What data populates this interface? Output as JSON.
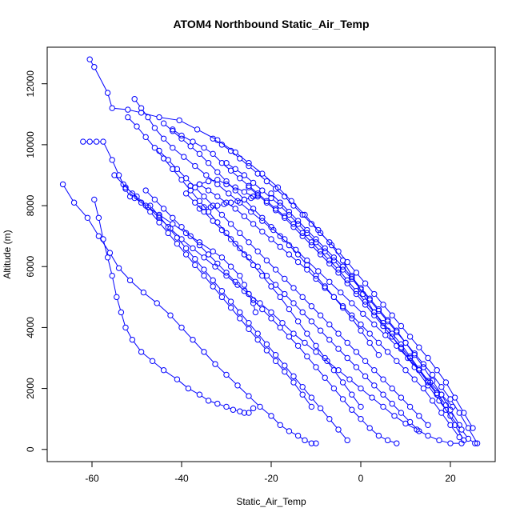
{
  "chart_data": {
    "type": "scatter",
    "title": "ATOM4 Northbound Static_Air_Temp",
    "xlabel": "Static_Air_Temp",
    "ylabel": "Altitude (m)",
    "xlim": [
      -70,
      30
    ],
    "ylim": [
      -400,
      13200
    ],
    "xticks": [
      -60,
      -40,
      -20,
      0,
      20
    ],
    "yticks": [
      0,
      2000,
      4000,
      6000,
      8000,
      10000,
      12000
    ],
    "xtick_labels": [
      "-60",
      "-40",
      "-20",
      "0",
      "20"
    ],
    "ytick_labels": [
      "0",
      "2000",
      "4000",
      "6000",
      "8000",
      "10000",
      "12000"
    ],
    "grid": false,
    "legend": "none",
    "series_color": "#0000ff",
    "marker": "open-circle",
    "connected": true,
    "series": [
      {
        "x": [
          -60.5,
          -59.5,
          -56.5,
          -55.5,
          -52.0,
          -49.0,
          -45.0,
          -40.5,
          -36.5,
          -32.0,
          -28.0,
          -25.0,
          -22.0,
          -18.5,
          -15.5,
          -12.5,
          -9.5,
          -6.5,
          -4.0,
          -2.0,
          0.5,
          3.0,
          6.0,
          9.0,
          12.0,
          15.0,
          17.5,
          20.0,
          22.5,
          24.0,
          25.5
        ],
        "y": [
          12800,
          12550,
          11700,
          11200,
          11150,
          11050,
          10900,
          10800,
          10500,
          10150,
          9750,
          9400,
          9050,
          8600,
          8150,
          7700,
          7200,
          6700,
          6200,
          5700,
          5100,
          4500,
          3900,
          3300,
          2700,
          2100,
          1600,
          1100,
          650,
          350,
          200
        ]
      },
      {
        "x": [
          -66.5,
          -64.0,
          -61.0,
          -58.5,
          -56.0,
          -54.0,
          -51.5,
          -48.5,
          -45.5,
          -42.5,
          -40.0,
          -37.5,
          -35.0,
          -32.5,
          -30.0,
          -27.5,
          -25.0,
          -22.5,
          -20.0,
          -18.0,
          -16.0,
          -14.0,
          -12.5,
          -11.0,
          -10.0
        ],
        "y": [
          8700,
          8100,
          7600,
          7000,
          6450,
          5950,
          5550,
          5150,
          4800,
          4400,
          4000,
          3600,
          3200,
          2800,
          2450,
          2100,
          1750,
          1400,
          1100,
          800,
          600,
          450,
          300,
          200,
          200
        ]
      },
      {
        "x": [
          -62.0,
          -60.5,
          -59.0,
          -57.5,
          -55.5,
          -54.0,
          -52.5,
          -51.5,
          -50.5,
          -48.0,
          -45.0,
          -42.0,
          -39.0,
          -36.0,
          -33.0,
          -31.0,
          -29.0,
          -27.0,
          -26.0,
          -25.0,
          -24.0,
          -23.5
        ],
        "y": [
          10100,
          10100,
          10100,
          10100,
          9500,
          9000,
          8550,
          8300,
          8250,
          8000,
          7700,
          7400,
          7100,
          6800,
          6500,
          6300,
          6000,
          5700,
          5400,
          5100,
          4800,
          4500
        ]
      },
      {
        "x": [
          -59.5,
          -58.5,
          -57.5,
          -56.5,
          -55.5,
          -54.5,
          -53.5,
          -52.5,
          -51.0,
          -49.0,
          -46.5,
          -44.0,
          -41.0,
          -38.5,
          -36.0,
          -34.0,
          -32.0,
          -30.0,
          -28.5,
          -27.0,
          -26.0,
          -25.0,
          -24.0
        ],
        "y": [
          8200,
          7600,
          6900,
          6300,
          5700,
          5000,
          4500,
          4000,
          3600,
          3200,
          2900,
          2600,
          2300,
          2000,
          1800,
          1600,
          1500,
          1400,
          1300,
          1250,
          1200,
          1200,
          1350
        ]
      },
      {
        "x": [
          -52.5,
          -50.0,
          -47.5,
          -45.0,
          -42.5,
          -40.0,
          -37.5,
          -35.0,
          -32.5,
          -30.0,
          -27.5,
          -25.0,
          -22.5,
          -20.0,
          -17.5,
          -15.0,
          -12.5,
          -10.0,
          -7.5,
          -5.0,
          -2.5,
          0.0,
          2.5,
          5.0,
          7.5,
          10.0,
          12.5,
          15.0,
          17.5,
          20.0,
          22.5
        ],
        "y": [
          8600,
          8300,
          7950,
          7600,
          7250,
          6900,
          6600,
          6300,
          6000,
          5700,
          5400,
          5100,
          4800,
          4500,
          4150,
          3800,
          3500,
          3200,
          2900,
          2600,
          2300,
          2000,
          1700,
          1400,
          1100,
          850,
          650,
          450,
          300,
          200,
          200
        ]
      },
      {
        "x": [
          -50.5,
          -49.0,
          -47.5,
          -46.0,
          -44.0,
          -42.0,
          -39.5,
          -37.0,
          -34.5,
          -32.0,
          -29.5,
          -27.0,
          -24.5,
          -22.0,
          -19.5,
          -17.0,
          -14.5,
          -12.0,
          -9.5,
          -7.0,
          -4.5,
          -2.0,
          0.5,
          3.0,
          5.5,
          8.0,
          10.5,
          13.0,
          15.5,
          18.0,
          20.5
        ],
        "y": [
          11500,
          11200,
          10900,
          10550,
          10200,
          9900,
          9600,
          9300,
          9000,
          8700,
          8400,
          8100,
          7800,
          7500,
          7200,
          6900,
          6550,
          6200,
          5850,
          5500,
          5150,
          4800,
          4450,
          4100,
          3750,
          3400,
          3000,
          2600,
          2200,
          1800,
          1400
        ]
      },
      {
        "x": [
          -42.0,
          -40.0,
          -37.5,
          -35.0,
          -33.0,
          -31.0,
          -29.0,
          -27.0,
          -25.0,
          -23.0,
          -21.0,
          -19.0,
          -17.0,
          -15.0,
          -13.0,
          -11.0,
          -9.0,
          -7.0,
          -5.0,
          -3.0,
          -1.0,
          1.0,
          3.0,
          5.0,
          7.0,
          9.0,
          11.0,
          13.0,
          15.0,
          17.0,
          19.0
        ],
        "y": [
          10500,
          10300,
          10100,
          9900,
          9700,
          9400,
          9150,
          8900,
          8650,
          8400,
          8150,
          7900,
          7650,
          7400,
          7100,
          6800,
          6500,
          6200,
          5900,
          5550,
          5200,
          4850,
          4500,
          4150,
          3800,
          3450,
          3050,
          2650,
          2250,
          1850,
          1450
        ]
      },
      {
        "x": [
          -48.0,
          -46.0,
          -44.0,
          -42.0,
          -40.0,
          -38.0,
          -36.0,
          -34.0,
          -32.0,
          -30.0,
          -28.0,
          -26.0,
          -24.0,
          -22.0,
          -20.0,
          -18.0,
          -16.0,
          -14.0,
          -12.0,
          -10.0,
          -8.0,
          -6.0,
          -4.0,
          -2.0,
          0.0,
          2.0,
          4.0,
          6.0,
          8.0
        ],
        "y": [
          8500,
          8200,
          7900,
          7600,
          7300,
          7000,
          6700,
          6400,
          6100,
          5800,
          5500,
          5200,
          4900,
          4600,
          4300,
          4000,
          3700,
          3400,
          3050,
          2700,
          2350,
          2000,
          1650,
          1300,
          1000,
          700,
          450,
          300,
          200
        ]
      },
      {
        "x": [
          -45.0,
          -43.0,
          -41.0,
          -39.0,
          -37.0,
          -35.0,
          -33.0,
          -31.0,
          -29.0,
          -27.0,
          -25.0,
          -23.0,
          -21.0,
          -19.0,
          -17.0,
          -15.0,
          -13.0,
          -11.0,
          -9.0,
          -7.0,
          -5.0,
          -3.0,
          -1.0,
          1.0,
          3.0,
          5.0,
          7.0,
          9.0,
          11.0,
          13.0,
          15.0
        ],
        "y": [
          9800,
          9500,
          9200,
          8900,
          8600,
          8300,
          8000,
          7700,
          7400,
          7100,
          6800,
          6500,
          6200,
          5900,
          5600,
          5300,
          5000,
          4700,
          4400,
          4100,
          3800,
          3500,
          3200,
          2900,
          2600,
          2300,
          2000,
          1700,
          1400,
          1100,
          800
        ]
      },
      {
        "x": [
          -36.0,
          -34.0,
          -32.0,
          -30.0,
          -28.0,
          -26.0,
          -24.0,
          -22.0,
          -20.0,
          -18.0,
          -16.0,
          -14.0,
          -12.0,
          -10.0,
          -8.0,
          -6.0,
          -4.0,
          -2.0,
          0.0,
          2.0,
          4.0,
          6.0,
          8.0,
          10.0,
          12.0,
          14.0,
          16.0,
          18.0,
          20.0,
          22.0
        ],
        "y": [
          8700,
          8500,
          8300,
          8100,
          7900,
          7650,
          7400,
          7150,
          6900,
          6650,
          6400,
          6150,
          5900,
          5600,
          5300,
          5000,
          4700,
          4400,
          4100,
          3800,
          3500,
          3200,
          2900,
          2600,
          2300,
          2000,
          1600,
          1200,
          800,
          400
        ]
      },
      {
        "x": [
          -33.0,
          -31.0,
          -29.0,
          -27.0,
          -25.0,
          -23.0,
          -21.0,
          -19.0,
          -17.0,
          -15.0,
          -13.0,
          -11.0,
          -9.0,
          -7.0,
          -5.0,
          -3.0,
          -1.0,
          1.0,
          3.0,
          5.0,
          7.0,
          9.0,
          11.0,
          13.0,
          15.0,
          17.0,
          19.0,
          21.0,
          23.0,
          25.0
        ],
        "y": [
          10200,
          10000,
          9800,
          9550,
          9300,
          9050,
          8800,
          8550,
          8300,
          8000,
          7700,
          7400,
          7100,
          6800,
          6500,
          6150,
          5800,
          5450,
          5100,
          4750,
          4400,
          4050,
          3700,
          3350,
          3000,
          2600,
          2200,
          1700,
          1200,
          700
        ]
      },
      {
        "x": [
          -39.0,
          -37.0,
          -35.0,
          -33.0,
          -31.0,
          -29.0,
          -27.0,
          -25.0,
          -23.0,
          -21.0,
          -19.0,
          -17.0,
          -15.0,
          -13.0,
          -11.0,
          -9.0,
          -7.0,
          -5.0,
          -3.0,
          -1.0,
          1.0,
          3.0,
          5.0,
          7.0,
          9.0,
          11.0,
          13.0
        ],
        "y": [
          8400,
          8100,
          7800,
          7500,
          7200,
          6900,
          6600,
          6300,
          6000,
          5700,
          5400,
          5100,
          4800,
          4500,
          4200,
          3900,
          3600,
          3300,
          3000,
          2700,
          2400,
          2100,
          1800,
          1500,
          1200,
          900,
          600
        ]
      },
      {
        "x": [
          -30.0,
          -28.0,
          -26.0,
          -24.0,
          -22.0,
          -20.0,
          -18.0,
          -16.0,
          -14.0,
          -12.0,
          -10.0,
          -8.0,
          -6.0,
          -4.0,
          -2.0,
          0.0,
          2.0,
          4.0,
          6.0,
          8.0,
          10.0,
          12.0,
          14.0,
          16.0,
          18.0,
          20.0,
          22.0,
          24.0,
          26.0
        ],
        "y": [
          9400,
          9200,
          9000,
          8750,
          8500,
          8250,
          8000,
          7700,
          7400,
          7100,
          6800,
          6500,
          6200,
          5900,
          5600,
          5250,
          4900,
          4550,
          4200,
          3850,
          3500,
          3150,
          2800,
          2450,
          2050,
          1650,
          1200,
          700,
          200
        ]
      },
      {
        "x": [
          -52.0,
          -50.0,
          -48.0,
          -46.0,
          -44.0,
          -42.0,
          -40.0,
          -38.0,
          -36.0,
          -34.0,
          -32.0,
          -30.0,
          -28.0,
          -26.0,
          -24.0,
          -22.0,
          -20.0,
          -18.0,
          -16.0,
          -14.0,
          -12.0,
          -10.0,
          -8.0,
          -6.0,
          -4.0,
          -2.0,
          0.0
        ],
        "y": [
          10900,
          10600,
          10250,
          9900,
          9550,
          9200,
          8850,
          8500,
          8150,
          7800,
          7450,
          7100,
          6750,
          6400,
          6050,
          5700,
          5350,
          5000,
          4600,
          4200,
          3800,
          3400,
          3000,
          2600,
          2200,
          1800,
          1400
        ]
      },
      {
        "x": [
          -25.0,
          -23.0,
          -21.0,
          -19.0,
          -17.0,
          -15.0,
          -13.0,
          -11.0,
          -9.0,
          -7.0,
          -5.0,
          -3.0,
          -1.0,
          1.0,
          3.0,
          5.0,
          7.0,
          9.0,
          11.0,
          13.0,
          15.0,
          17.0,
          19.0,
          21.0,
          23.0
        ],
        "y": [
          8600,
          8350,
          8100,
          7850,
          7600,
          7300,
          7000,
          6700,
          6400,
          6100,
          5800,
          5450,
          5100,
          4750,
          4400,
          4050,
          3700,
          3350,
          3000,
          2600,
          2200,
          1800,
          1300,
          800,
          300
        ]
      },
      {
        "x": [
          -47.0,
          -45.0,
          -43.0,
          -41.0,
          -39.0,
          -37.0,
          -35.0,
          -33.0,
          -31.0,
          -29.0,
          -27.0,
          -25.0,
          -23.0,
          -21.0,
          -19.0,
          -17.0,
          -15.0,
          -13.0,
          -11.0,
          -9.0,
          -7.0,
          -5.0,
          -3.0
        ],
        "y": [
          8000,
          7650,
          7300,
          6950,
          6600,
          6250,
          5900,
          5550,
          5200,
          4850,
          4500,
          4150,
          3800,
          3450,
          3100,
          2750,
          2400,
          2050,
          1700,
          1350,
          1000,
          650,
          300
        ]
      },
      {
        "x": [
          -20.0,
          -18.0,
          -16.0,
          -14.0,
          -12.0,
          -10.0,
          -8.0,
          -6.0,
          -4.0,
          -2.0,
          0.0,
          2.0,
          4.0,
          6.0,
          8.0,
          10.0,
          12.0,
          14.0,
          16.0,
          18.0,
          20.0,
          22.0
        ],
        "y": [
          8400,
          8100,
          7800,
          7500,
          7200,
          6900,
          6600,
          6300,
          6000,
          5650,
          5300,
          4950,
          4600,
          4250,
          3900,
          3500,
          3100,
          2700,
          2250,
          1800,
          1300,
          800
        ]
      },
      {
        "x": [
          -44.0,
          -42.0,
          -40.0,
          -38.0,
          -36.0,
          -34.0,
          -32.0,
          -30.0,
          -28.0,
          -26.0,
          -24.0,
          -22.0,
          -20.0,
          -18.0,
          -16.0,
          -14.0,
          -12.0,
          -10.0,
          -8.0,
          -6.0,
          -4.0,
          -2.0,
          0.0,
          2.0,
          4.0
        ],
        "y": [
          10700,
          10450,
          10200,
          9950,
          9700,
          9400,
          9100,
          8800,
          8500,
          8200,
          7900,
          7600,
          7300,
          7000,
          6700,
          6400,
          6050,
          5700,
          5350,
          5000,
          4650,
          4300,
          3900,
          3500,
          3100
        ]
      },
      {
        "x": [
          -55.0,
          -53.0,
          -51.0,
          -49.0,
          -47.0,
          -45.0,
          -43.0,
          -41.0,
          -39.0,
          -37.0,
          -35.0,
          -33.0,
          -31.0,
          -29.0,
          -27.0,
          -25.0,
          -23.0,
          -21.0,
          -19.0,
          -17.0,
          -15.0,
          -13.0,
          -11.0
        ],
        "y": [
          9000,
          8700,
          8400,
          8100,
          7800,
          7450,
          7100,
          6750,
          6400,
          6050,
          5700,
          5350,
          5000,
          4650,
          4300,
          3950,
          3600,
          3250,
          2900,
          2550,
          2200,
          1800,
          1400
        ]
      },
      {
        "x": [
          -38.0,
          -36.0,
          -34.0,
          -32.0,
          -30.0,
          -28.0,
          -26.0,
          -24.0
        ],
        "y": [
          8650,
          8700,
          8800,
          8850,
          8700,
          8600,
          8450,
          8300
        ]
      },
      {
        "x": [
          -36.0,
          -35.0,
          -33.5,
          -32.0,
          -30.5,
          -29.0,
          -27.5,
          -26.0,
          -24.5,
          -23.0
        ],
        "y": [
          7900,
          7950,
          7950,
          8000,
          8050,
          8100,
          8150,
          8200,
          8250,
          8300
        ]
      }
    ]
  }
}
